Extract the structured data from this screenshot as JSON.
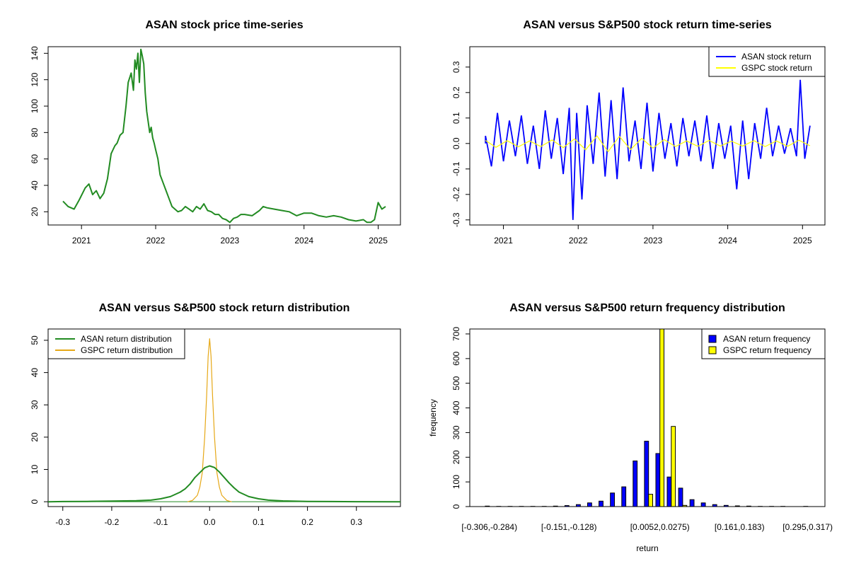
{
  "chart_data": [
    {
      "id": "price",
      "type": "line",
      "title": "ASAN stock price time-series",
      "xlabel": "",
      "ylabel": "",
      "xlim": [
        2020.55,
        2025.3
      ],
      "ylim": [
        10,
        145
      ],
      "xticks": [
        2021,
        2022,
        2023,
        2024,
        2025
      ],
      "xtick_labels": [
        "2021",
        "2022",
        "2023",
        "2024",
        "2025"
      ],
      "yticks": [
        20,
        40,
        60,
        80,
        100,
        120,
        140
      ],
      "ytick_labels": [
        "20",
        "40",
        "60",
        "80",
        "100",
        "120",
        "140"
      ],
      "series": [
        {
          "color": "#228B22",
          "x": [
            2020.75,
            2020.82,
            2020.9,
            2020.97,
            2021.05,
            2021.1,
            2021.15,
            2021.2,
            2021.25,
            2021.3,
            2021.35,
            2021.4,
            2021.45,
            2021.48,
            2021.52,
            2021.56,
            2021.6,
            2021.63,
            2021.67,
            2021.7,
            2021.72,
            2021.74,
            2021.76,
            2021.78,
            2021.8,
            2021.82,
            2021.84,
            2021.86,
            2021.88,
            2021.9,
            2021.92,
            2021.94,
            2021.96,
            2021.98,
            2022.0,
            2022.03,
            2022.06,
            2022.1,
            2022.14,
            2022.18,
            2022.22,
            2022.26,
            2022.3,
            2022.35,
            2022.4,
            2022.45,
            2022.5,
            2022.55,
            2022.6,
            2022.65,
            2022.7,
            2022.75,
            2022.8,
            2022.85,
            2022.9,
            2022.95,
            2023.0,
            2023.05,
            2023.1,
            2023.15,
            2023.2,
            2023.3,
            2023.4,
            2023.45,
            2023.5,
            2023.6,
            2023.7,
            2023.8,
            2023.9,
            2024.0,
            2024.1,
            2024.2,
            2024.3,
            2024.4,
            2024.5,
            2024.6,
            2024.7,
            2024.8,
            2024.85,
            2024.9,
            2024.95,
            2025.0,
            2025.05,
            2025.1
          ],
          "y": [
            28,
            24,
            22,
            29,
            38,
            41,
            33,
            36,
            30,
            34,
            45,
            64,
            70,
            72,
            78,
            80,
            100,
            118,
            125,
            112,
            135,
            128,
            140,
            118,
            143,
            138,
            132,
            110,
            96,
            88,
            80,
            84,
            76,
            72,
            67,
            60,
            48,
            42,
            36,
            30,
            24,
            22,
            20,
            21,
            24,
            22,
            20,
            24,
            22,
            26,
            21,
            20,
            18,
            18,
            15,
            14,
            12,
            15,
            16,
            18,
            18,
            17,
            21,
            24,
            23,
            22,
            21,
            20,
            17,
            19,
            19,
            17,
            16,
            17,
            16,
            14,
            13,
            14,
            12,
            12,
            14,
            27,
            22,
            24
          ]
        }
      ]
    },
    {
      "id": "returns",
      "type": "line",
      "title": "ASAN versus S&P500 stock return time-series",
      "xlabel": "",
      "ylabel": "",
      "xlim": [
        2020.55,
        2025.3
      ],
      "ylim": [
        -0.32,
        0.38
      ],
      "xticks": [
        2021,
        2022,
        2023,
        2024,
        2025
      ],
      "xtick_labels": [
        "2021",
        "2022",
        "2023",
        "2024",
        "2025"
      ],
      "yticks": [
        -0.3,
        -0.2,
        -0.1,
        0.0,
        0.1,
        0.2,
        0.3
      ],
      "ytick_labels": [
        "-0.3",
        "-0.2",
        "-0.1",
        "0.0",
        "0.1",
        "0.2",
        "0.3"
      ],
      "legend": {
        "position": "top-right",
        "entries": [
          {
            "label": "ASAN stock return",
            "color": "#0000FF"
          },
          {
            "label": "GSPC stock return",
            "color": "#FFFF00"
          }
        ]
      },
      "series": [
        {
          "name": "ASAN stock return",
          "color": "#0000FF",
          "x": [
            2020.76,
            2020.84,
            2020.92,
            2021.0,
            2021.08,
            2021.16,
            2021.24,
            2021.32,
            2021.4,
            2021.48,
            2021.56,
            2021.64,
            2021.72,
            2021.8,
            2021.88,
            2021.93,
            2021.98,
            2022.05,
            2022.12,
            2022.2,
            2022.28,
            2022.36,
            2022.44,
            2022.52,
            2022.6,
            2022.68,
            2022.76,
            2022.84,
            2022.92,
            2023.0,
            2023.08,
            2023.16,
            2023.24,
            2023.32,
            2023.4,
            2023.48,
            2023.56,
            2023.64,
            2023.72,
            2023.8,
            2023.88,
            2023.96,
            2024.04,
            2024.12,
            2024.2,
            2024.28,
            2024.36,
            2024.44,
            2024.52,
            2024.6,
            2024.68,
            2024.76,
            2024.84,
            2024.92,
            2024.97,
            2025.03,
            2025.1
          ],
          "y": [
            0.03,
            -0.09,
            0.12,
            -0.07,
            0.09,
            -0.05,
            0.11,
            -0.08,
            0.07,
            -0.1,
            0.13,
            -0.06,
            0.1,
            -0.12,
            0.14,
            -0.3,
            0.12,
            -0.22,
            0.15,
            -0.08,
            0.2,
            -0.13,
            0.17,
            -0.14,
            0.22,
            -0.07,
            0.09,
            -0.1,
            0.16,
            -0.11,
            0.12,
            -0.06,
            0.08,
            -0.09,
            0.1,
            -0.05,
            0.09,
            -0.07,
            0.11,
            -0.1,
            0.08,
            -0.06,
            0.07,
            -0.18,
            0.09,
            -0.14,
            0.08,
            -0.06,
            0.14,
            -0.05,
            0.07,
            -0.04,
            0.06,
            -0.05,
            0.25,
            -0.06,
            0.07
          ]
        },
        {
          "name": "GSPC stock return",
          "color": "#FFFF00",
          "x": [
            2020.76,
            2020.9,
            2021.05,
            2021.2,
            2021.35,
            2021.5,
            2021.65,
            2021.8,
            2021.95,
            2022.1,
            2022.25,
            2022.4,
            2022.55,
            2022.7,
            2022.85,
            2023.0,
            2023.15,
            2023.3,
            2023.45,
            2023.6,
            2023.75,
            2023.9,
            2024.05,
            2024.2,
            2024.35,
            2024.5,
            2024.65,
            2024.8,
            2024.95,
            2025.1
          ],
          "y": [
            0.012,
            -0.015,
            0.011,
            -0.013,
            0.01,
            -0.012,
            0.014,
            -0.016,
            0.018,
            -0.025,
            0.03,
            -0.032,
            0.028,
            -0.024,
            0.02,
            -0.018,
            0.015,
            -0.012,
            0.01,
            -0.011,
            0.012,
            -0.01,
            0.009,
            -0.01,
            0.011,
            -0.012,
            0.01,
            -0.011,
            0.013,
            -0.009
          ]
        }
      ]
    },
    {
      "id": "density",
      "type": "line",
      "title": "ASAN versus S&P500 stock return distribution",
      "xlabel": "",
      "ylabel": "",
      "xlim": [
        -0.33,
        0.39
      ],
      "ylim": [
        -1.5,
        53.5
      ],
      "xticks": [
        -0.3,
        -0.2,
        -0.1,
        0.0,
        0.1,
        0.2,
        0.3
      ],
      "xtick_labels": [
        "-0.3",
        "-0.2",
        "-0.1",
        "0.0",
        "0.1",
        "0.2",
        "0.3"
      ],
      "yticks": [
        0,
        10,
        20,
        30,
        40,
        50
      ],
      "ytick_labels": [
        "0",
        "10",
        "20",
        "30",
        "40",
        "50"
      ],
      "legend": {
        "position": "top-left",
        "entries": [
          {
            "label": "ASAN return distribution",
            "color": "#228B22"
          },
          {
            "label": "GSPC return distribution",
            "color": "#E6A817"
          }
        ]
      },
      "series": [
        {
          "name": "ASAN return distribution",
          "color": "#228B22",
          "x": [
            -0.33,
            -0.3,
            -0.25,
            -0.2,
            -0.15,
            -0.12,
            -0.1,
            -0.08,
            -0.06,
            -0.05,
            -0.04,
            -0.03,
            -0.02,
            -0.01,
            0.0,
            0.01,
            0.02,
            0.03,
            0.04,
            0.05,
            0.06,
            0.08,
            0.1,
            0.12,
            0.15,
            0.2,
            0.25,
            0.3,
            0.39
          ],
          "y": [
            0,
            0.05,
            0.1,
            0.2,
            0.3,
            0.5,
            0.9,
            1.6,
            3.0,
            4.0,
            5.5,
            7.5,
            9.0,
            10.5,
            11.1,
            10.6,
            9.2,
            7.5,
            5.8,
            4.3,
            3.0,
            1.6,
            0.9,
            0.5,
            0.25,
            0.1,
            0.05,
            0.02,
            0
          ]
        },
        {
          "name": "GSPC return distribution",
          "color": "#E6A817",
          "x": [
            -0.045,
            -0.035,
            -0.025,
            -0.02,
            -0.015,
            -0.01,
            -0.006,
            -0.003,
            0.0,
            0.003,
            0.006,
            0.01,
            0.015,
            0.02,
            0.025,
            0.035,
            0.045
          ],
          "y": [
            0,
            0.4,
            2.0,
            4.5,
            9.0,
            20.0,
            33.0,
            45.0,
            50.5,
            45.0,
            33.0,
            20.0,
            9.0,
            4.5,
            2.0,
            0.4,
            0
          ]
        }
      ]
    },
    {
      "id": "freq",
      "type": "bar",
      "title": "ASAN versus S&P500 return frequency distribution",
      "xlabel": "return",
      "ylabel": "frequency",
      "ylim": [
        0,
        720
      ],
      "yticks": [
        0,
        100,
        200,
        300,
        400,
        500,
        600,
        700
      ],
      "ytick_labels": [
        "0",
        "100",
        "200",
        "300",
        "400",
        "500",
        "600",
        "700"
      ],
      "xtick_labels": [
        {
          "index": 0,
          "label": "[-0.306,-0.284)"
        },
        {
          "index": 7,
          "label": "[-0.151,-0.128)"
        },
        {
          "index": 15,
          "label": "[0.0052,0.0275)"
        },
        {
          "index": 22,
          "label": "[0.161,0.183)"
        },
        {
          "index": 28,
          "label": "[0.295,0.317)"
        }
      ],
      "n_bins": 29,
      "legend": {
        "position": "top-right",
        "entries": [
          {
            "label": "ASAN return frequency",
            "color": "#0000FF"
          },
          {
            "label": "GSPC return frequency",
            "color": "#FFFF00"
          }
        ]
      },
      "series": [
        {
          "name": "ASAN return frequency",
          "color": "#0000FF",
          "values": [
            2,
            1,
            1,
            1,
            1,
            1,
            2,
            4,
            8,
            15,
            22,
            55,
            80,
            185,
            265,
            215,
            120,
            75,
            28,
            15,
            8,
            5,
            3,
            2,
            1,
            1,
            1,
            0,
            1
          ]
        },
        {
          "name": "GSPC return frequency",
          "color": "#FFFF00",
          "values": [
            0,
            0,
            0,
            0,
            0,
            0,
            0,
            0,
            0,
            0,
            0,
            0,
            0,
            0,
            50,
            720,
            325,
            5,
            0,
            0,
            0,
            0,
            0,
            0,
            0,
            0,
            0,
            0,
            0
          ]
        }
      ]
    }
  ]
}
